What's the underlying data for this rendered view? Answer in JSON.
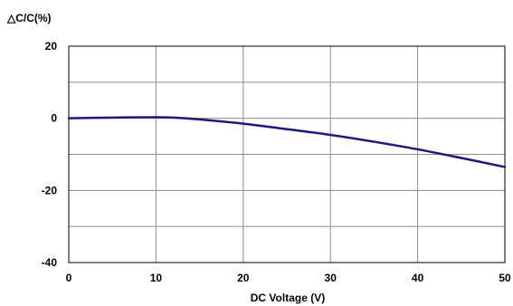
{
  "chart_data": {
    "type": "line",
    "title": "",
    "ylabel": "△C/C(%)",
    "xlabel": "DC Voltage (V)",
    "xlim": [
      0,
      50
    ],
    "ylim": [
      -40,
      20
    ],
    "x_ticks": [
      "0",
      "10",
      "20",
      "30",
      "40",
      "50"
    ],
    "y_ticks": [
      "20",
      "0",
      "-20",
      "-40"
    ],
    "grid": true,
    "series": [
      {
        "color": "#1a1a7a",
        "x": [
          0,
          5,
          10,
          12,
          15,
          20,
          25,
          30,
          35,
          40,
          45,
          50
        ],
        "y": [
          0,
          0.2,
          0.3,
          0.2,
          -0.3,
          -1.5,
          -3.0,
          -4.6,
          -6.5,
          -8.6,
          -11.0,
          -13.5
        ]
      }
    ]
  }
}
